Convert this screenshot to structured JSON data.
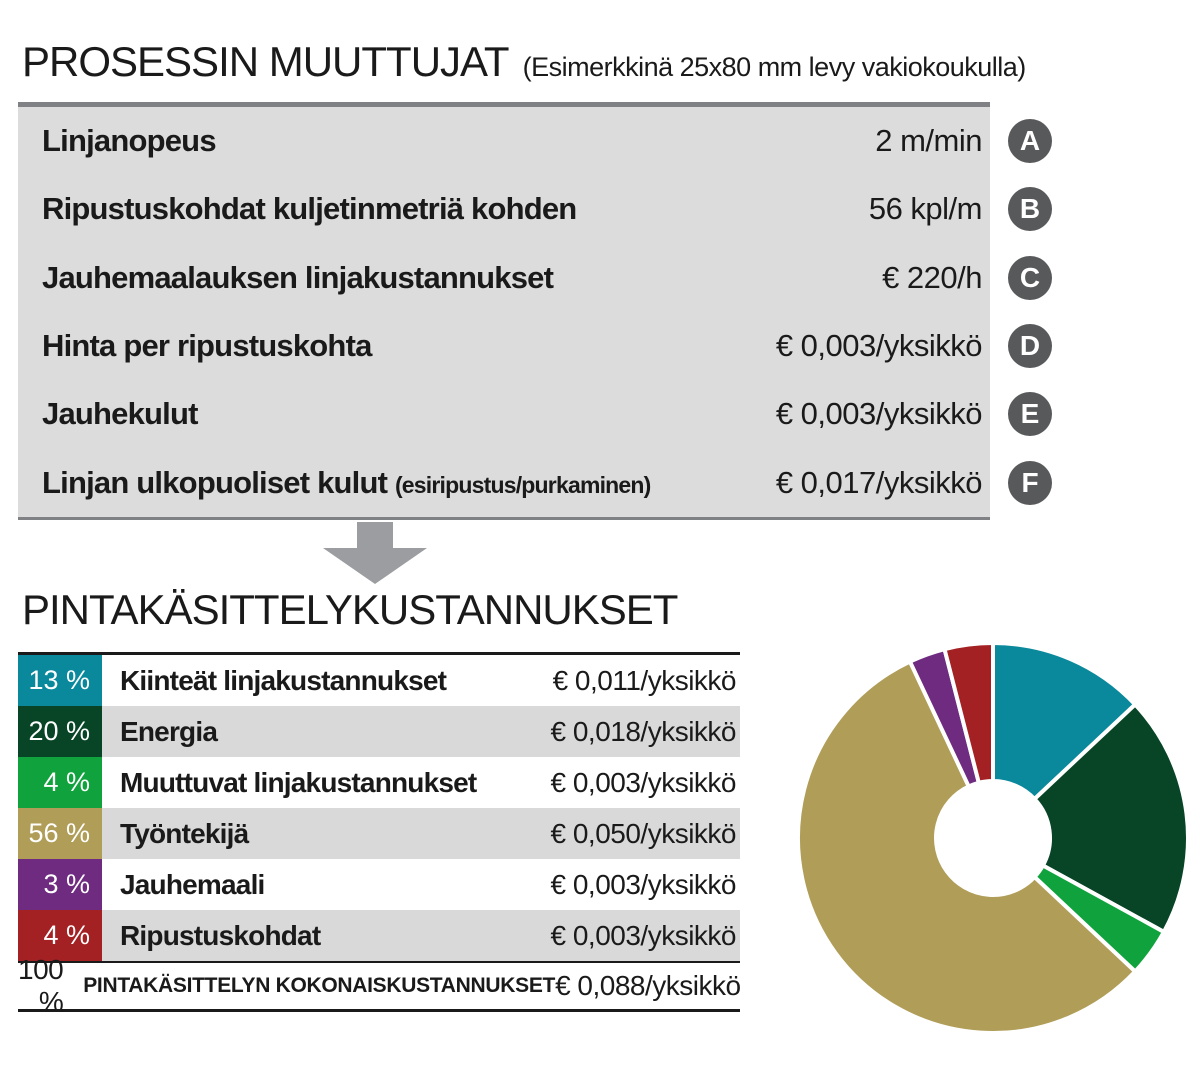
{
  "header": {
    "title": "PROSESSIN MUUTTUJAT",
    "subtitle": "(Esimerkkinä 25x80 mm levy vakiokoukulla)"
  },
  "process_table": {
    "rows": [
      {
        "label": "Linjanopeus",
        "note": "",
        "value": "2 m/min",
        "badge": "A"
      },
      {
        "label": "Ripustuskohdat kuljetinmetriä kohden",
        "note": "",
        "value": "56 kpl/m",
        "badge": "B"
      },
      {
        "label": "Jauhemaalauksen linjakustannukset",
        "note": "",
        "value": "€ 220/h",
        "badge": "C"
      },
      {
        "label": "Hinta per ripustuskohta",
        "note": "",
        "value": "€ 0,003/yksikkö",
        "badge": "D"
      },
      {
        "label": "Jauhekulut",
        "note": "",
        "value": "€ 0,003/yksikkö",
        "badge": "E"
      },
      {
        "label": "Linjan ulkopuoliset kulut",
        "note": "(esiripustus/purkaminen)",
        "value": "€ 0,017/yksikkö",
        "badge": "F"
      }
    ]
  },
  "costs": {
    "title": "PINTAKÄSITTELYKUSTANNUKSET",
    "rows": [
      {
        "percent": "13 %",
        "label": "Kiinteät linjakustannukset",
        "value": "€ 0,011/yksikkö",
        "color": "#0a889c"
      },
      {
        "percent": "20 %",
        "label": "Energia",
        "value": "€ 0,018/yksikkö",
        "color": "#074526"
      },
      {
        "percent": "4 %",
        "label": "Muuttuvat linjakustannukset",
        "value": "€ 0,003/yksikkö",
        "color": "#10a33d"
      },
      {
        "percent": "56 %",
        "label": "Työntekijä",
        "value": "€ 0,050/yksikkö",
        "color": "#b09d58"
      },
      {
        "percent": "3 %",
        "label": "Jauhemaali",
        "value": "€ 0,003/yksikkö",
        "color": "#6e2b80"
      },
      {
        "percent": "4 %",
        "label": "Ripustuskohdat",
        "value": "€ 0,003/yksikkö",
        "color": "#a32023"
      }
    ],
    "total": {
      "percent": "100 %",
      "label": "PINTAKÄSITTELYN KOKONAISKUSTANNUKSET",
      "value": "€ 0,088/yksikkö"
    }
  },
  "chart_data": {
    "type": "pie",
    "subtype": "donut",
    "title": "Pintakäsittelykustannukset jakauma",
    "categories": [
      "Kiinteät linjakustannukset",
      "Energia",
      "Muuttuvat linjakustannukset",
      "Työntekijä",
      "Jauhemaali",
      "Ripustuskohdat"
    ],
    "values": [
      13,
      20,
      4,
      56,
      3,
      4
    ],
    "unit": "%",
    "colors": [
      "#0a889c",
      "#074526",
      "#10a33d",
      "#b09d58",
      "#6e2b80",
      "#a32023"
    ],
    "start_angle_deg": 0,
    "direction": "clockwise",
    "outer_radius": 195,
    "inner_radius": 57,
    "slice_gap_color": "#ffffff",
    "legend_position": "table-left"
  },
  "colors": {
    "badge_gray": "#58595b",
    "arrow_gray": "#9b9da0",
    "process_table_bg": "#dcdcdc",
    "process_table_border": "#7f8184",
    "row_alt_gray": "#d9d9d9",
    "text": "#1a1a1a"
  }
}
